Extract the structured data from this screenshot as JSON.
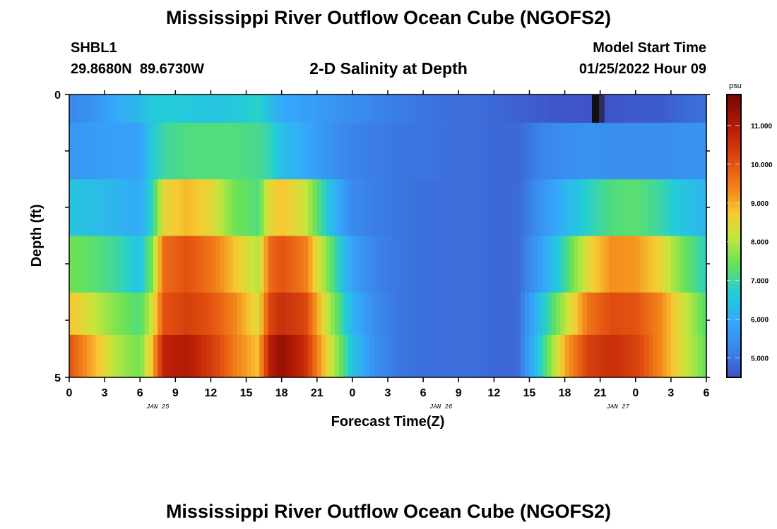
{
  "header": {
    "title": "Mississippi River Outflow Ocean Cube (NGOFS2)",
    "station": "SHBL1",
    "coords": "29.8680N  89.6730W",
    "subtitle": "2-D Salinity at Depth",
    "model_start_label": "Model Start Time",
    "model_start_value": "01/25/2022 Hour 09"
  },
  "footer": {
    "title": "Mississippi River Outflow Ocean Cube (NGOFS2)"
  },
  "chart_data": {
    "type": "heatmap",
    "xlabel": "Forecast Time(Z)",
    "ylabel": "Depth (ft)",
    "x_tick_labels": [
      "0",
      "3",
      "6",
      "9",
      "12",
      "15",
      "18",
      "21",
      "0",
      "3",
      "6",
      "9",
      "12",
      "15",
      "18",
      "21",
      "0",
      "3",
      "6"
    ],
    "date_labels": [
      {
        "label": "JAN 25",
        "tick_index": 2.5
      },
      {
        "label": "JAN 26",
        "tick_index": 10.5
      },
      {
        "label": "JAN 27",
        "tick_index": 15.5
      }
    ],
    "y_tick_labels": [
      "0",
      "5"
    ],
    "y_range": [
      0,
      5
    ],
    "colorbar": {
      "unit": "psu",
      "min": 4.5,
      "max": 11.8,
      "ticks": [
        "5.000",
        "6.000",
        "7.000",
        "8.000",
        "9.000",
        "10.000",
        "11.000"
      ],
      "tick_values": [
        5,
        6,
        7,
        8,
        9,
        10,
        11
      ]
    },
    "depth_layers": [
      0.0,
      1.0,
      2.0,
      3.0,
      4.0,
      4.5
    ],
    "forecast_hours": [
      0,
      2,
      4,
      6,
      7,
      8,
      10,
      12,
      14,
      16,
      17,
      18,
      20,
      22,
      24,
      26,
      28,
      30,
      32,
      34,
      36,
      38,
      40,
      42,
      44,
      46,
      48,
      50,
      52,
      54
    ],
    "salinity_psu": [
      [
        5.3,
        5.5,
        6.0,
        6.3,
        6.6,
        6.7,
        6.6,
        6.5,
        6.6,
        6.8,
        6.4,
        6.0,
        5.8,
        5.6,
        5.4,
        5.2,
        5.1,
        5.0,
        4.9,
        4.9,
        4.8,
        4.7,
        4.6,
        4.5,
        4.5,
        4.5,
        4.6,
        4.6,
        4.8,
        4.9
      ],
      [
        5.6,
        5.7,
        5.8,
        5.8,
        6.6,
        7.0,
        7.2,
        7.2,
        7.2,
        7.1,
        6.9,
        6.4,
        6.0,
        5.5,
        5.2,
        5.1,
        5.0,
        5.0,
        4.9,
        4.9,
        4.8,
        4.8,
        5.2,
        5.4,
        5.5,
        5.4,
        5.4,
        5.4,
        5.5,
        5.5
      ],
      [
        6.5,
        6.4,
        6.2,
        6.0,
        6.8,
        8.5,
        8.9,
        8.5,
        7.5,
        7.2,
        8.5,
        8.8,
        8.2,
        6.5,
        5.3,
        5.1,
        5.0,
        4.9,
        4.9,
        4.9,
        4.8,
        4.8,
        5.5,
        6.2,
        6.8,
        7.2,
        7.3,
        7.0,
        6.5,
        6.2
      ],
      [
        7.5,
        7.3,
        7.0,
        6.5,
        7.5,
        9.7,
        10.0,
        9.6,
        8.8,
        8.0,
        9.7,
        10.0,
        9.5,
        7.5,
        5.8,
        5.2,
        5.0,
        4.9,
        4.9,
        4.9,
        4.8,
        4.8,
        5.8,
        7.0,
        8.5,
        9.3,
        9.2,
        8.6,
        7.5,
        6.8
      ],
      [
        8.8,
        8.2,
        7.6,
        7.2,
        8.2,
        10.0,
        10.3,
        10.0,
        9.4,
        8.4,
        10.2,
        10.6,
        10.2,
        8.0,
        6.2,
        5.3,
        5.0,
        4.9,
        4.9,
        4.9,
        4.8,
        4.8,
        6.5,
        8.0,
        9.6,
        10.1,
        10.0,
        9.4,
        8.3,
        7.2
      ],
      [
        10.0,
        9.0,
        8.0,
        7.5,
        8.8,
        10.8,
        11.0,
        10.4,
        9.5,
        8.8,
        10.9,
        11.4,
        10.6,
        8.4,
        6.5,
        5.4,
        5.0,
        4.9,
        4.9,
        4.9,
        4.8,
        4.8,
        6.8,
        9.0,
        10.3,
        10.6,
        10.3,
        9.4,
        8.3,
        7.4
      ]
    ],
    "missing_cells": [
      {
        "layer": 0,
        "hour_start": 44.3,
        "hour_end": 44.9
      }
    ]
  }
}
